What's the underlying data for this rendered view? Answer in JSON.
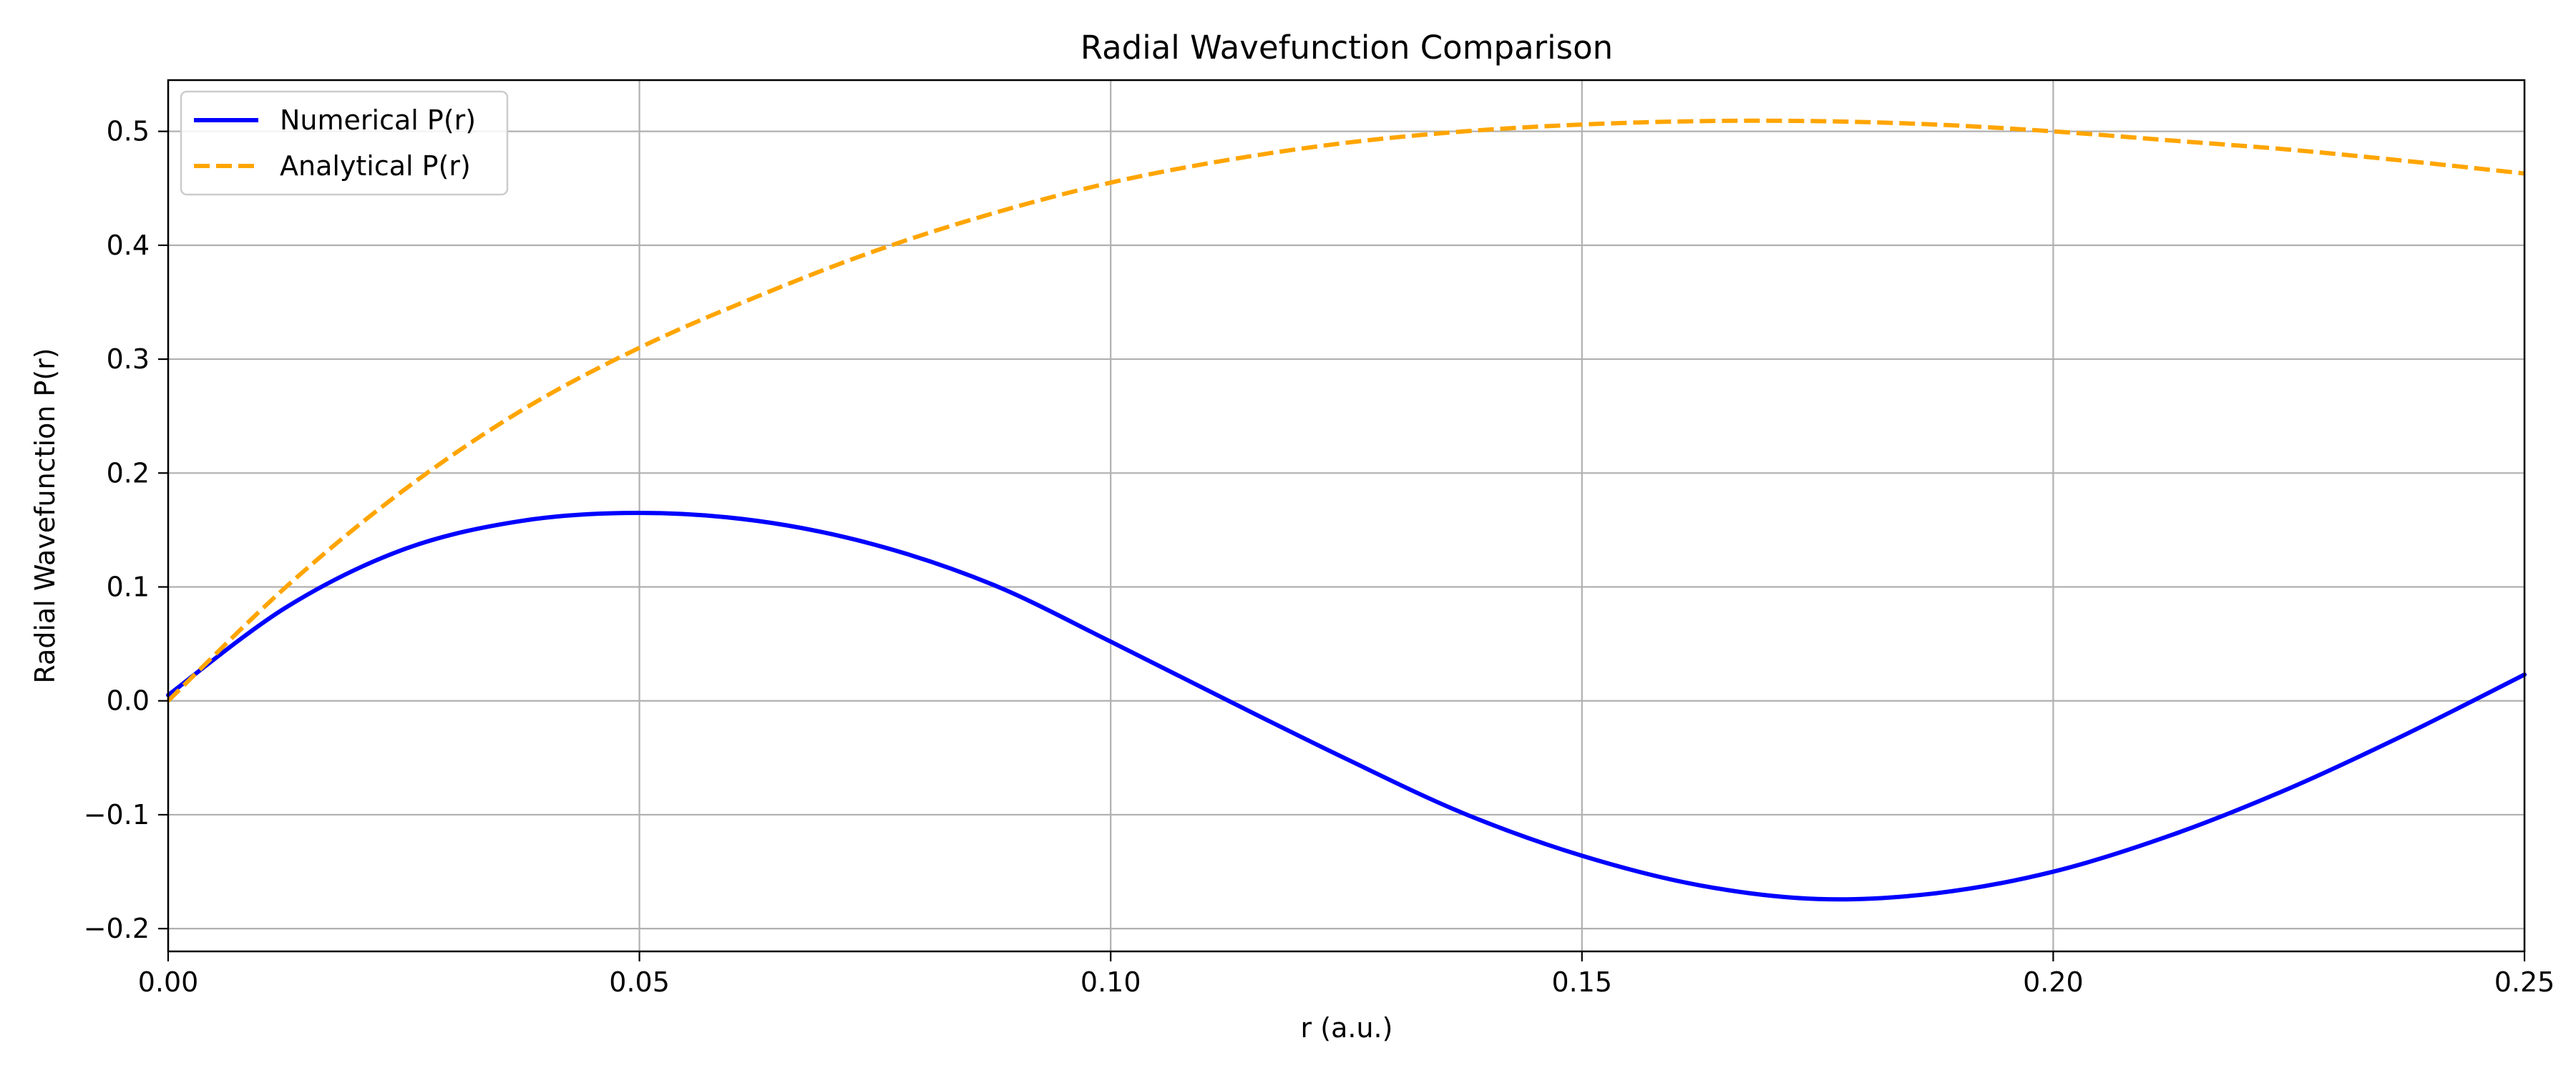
{
  "chart_data": {
    "type": "line",
    "title": "Radial Wavefunction Comparison",
    "xlabel": "r (a.u.)",
    "ylabel": "Radial Wavefunction P(r)",
    "xlim": [
      0.0,
      0.25
    ],
    "ylim": [
      -0.22,
      0.545
    ],
    "grid": true,
    "legend_position": "top-left",
    "x_ticks": [
      0.0,
      0.05,
      0.1,
      0.15,
      0.2,
      0.25
    ],
    "x_tick_labels": [
      "0.00",
      "0.05",
      "0.10",
      "0.15",
      "0.20",
      "0.25"
    ],
    "y_ticks": [
      -0.2,
      -0.1,
      0.0,
      0.1,
      0.2,
      0.3,
      0.4,
      0.5
    ],
    "y_tick_labels": [
      "−0.2",
      "−0.1",
      "0.0",
      "0.1",
      "0.2",
      "0.3",
      "0.4",
      "0.5"
    ],
    "series": [
      {
        "name": "Numerical P(r)",
        "color": "#0000ff",
        "style": "solid",
        "x": [
          0.0,
          0.0125,
          0.025,
          0.0375,
          0.05,
          0.0625,
          0.075,
          0.0875,
          0.1,
          0.1125,
          0.125,
          0.1375,
          0.15,
          0.1625,
          0.175,
          0.1875,
          0.2,
          0.2125,
          0.225,
          0.2375,
          0.25
        ],
        "y": [
          0.005,
          0.082,
          0.133,
          0.158,
          0.165,
          0.158,
          0.137,
          0.102,
          0.052,
          0.0,
          -0.051,
          -0.099,
          -0.136,
          -0.162,
          -0.174,
          -0.169,
          -0.15,
          -0.118,
          -0.077,
          -0.029,
          0.023
        ]
      },
      {
        "name": "Analytical P(r)",
        "color": "#ffa500",
        "style": "dashed",
        "x": [
          0.0,
          0.0125,
          0.025,
          0.0375,
          0.05,
          0.0625,
          0.075,
          0.0875,
          0.1,
          0.1125,
          0.125,
          0.1375,
          0.15,
          0.1625,
          0.175,
          0.1875,
          0.2,
          0.2125,
          0.225,
          0.2375,
          0.25
        ],
        "y": [
          0.0,
          0.1,
          0.185,
          0.255,
          0.31,
          0.355,
          0.395,
          0.428,
          0.455,
          0.475,
          0.49,
          0.5,
          0.506,
          0.509,
          0.509,
          0.506,
          0.5,
          0.492,
          0.484,
          0.474,
          0.463
        ]
      }
    ]
  }
}
